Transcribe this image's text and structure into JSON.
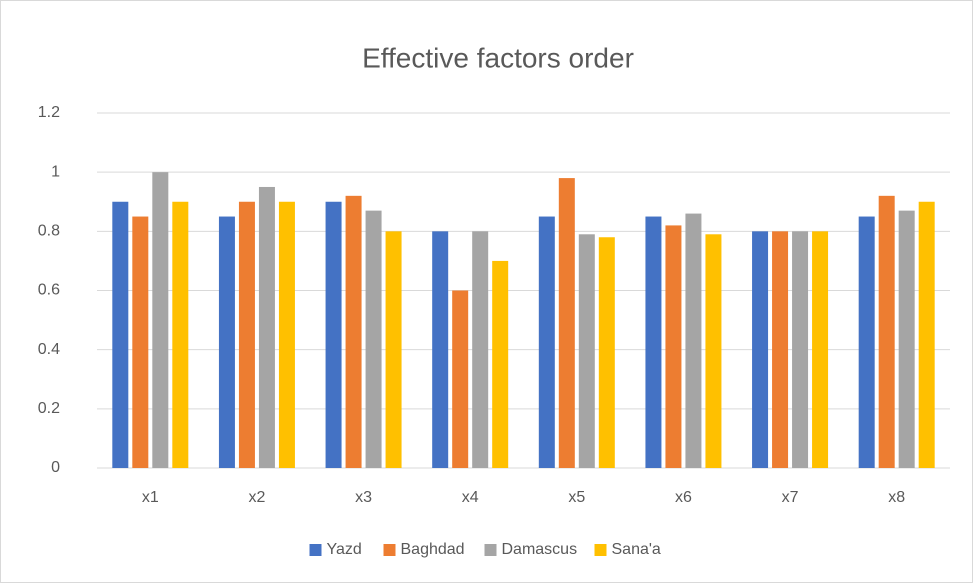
{
  "chart_data": {
    "type": "bar",
    "title": "Effective factors order",
    "categories": [
      "x1",
      "x2",
      "x3",
      "x4",
      "x5",
      "x6",
      "x7",
      "x8"
    ],
    "series": [
      {
        "name": "Yazd",
        "color": "#4472c4",
        "values": [
          0.9,
          0.85,
          0.9,
          0.8,
          0.85,
          0.85,
          0.8,
          0.85
        ]
      },
      {
        "name": "Baghdad",
        "color": "#ed7d31",
        "values": [
          0.85,
          0.9,
          0.92,
          0.6,
          0.98,
          0.82,
          0.8,
          0.92
        ]
      },
      {
        "name": "Damascus",
        "color": "#a5a5a5",
        "values": [
          1,
          0.95,
          0.87,
          0.8,
          0.79,
          0.86,
          0.8,
          0.87
        ]
      },
      {
        "name": "Sana'a",
        "color": "#ffc000",
        "values": [
          0.9,
          0.9,
          0.8,
          0.7,
          0.78,
          0.79,
          0.8,
          0.9
        ]
      }
    ],
    "ylim": [
      0,
      1.2
    ],
    "yticks": [
      0,
      0.2,
      0.4,
      0.6,
      0.8,
      1,
      1.2
    ],
    "grid": true,
    "legend": "bottom"
  }
}
